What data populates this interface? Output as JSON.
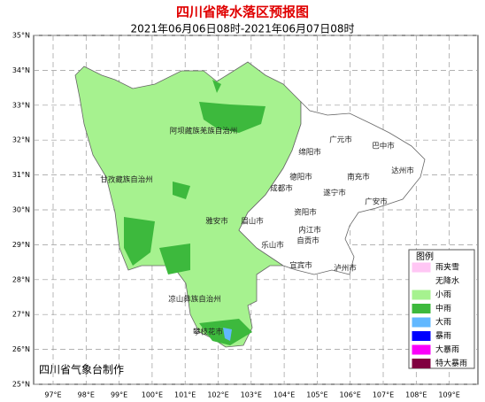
{
  "header": {
    "title": "四川省降水落区预报图",
    "subtitle": "2021年06月06日08时-2021年06月07日08时"
  },
  "map": {
    "lat_labels": [
      "35°N",
      "34°N",
      "33°N",
      "32°N",
      "31°N",
      "30°N",
      "29°N",
      "28°N",
      "27°N",
      "26°N",
      "25°N"
    ],
    "lon_labels": [
      "97°E",
      "98°E",
      "99°E",
      "100°E",
      "101°E",
      "102°E",
      "103°E",
      "104°E",
      "105°E",
      "106°E",
      "107°E",
      "108°E",
      "109°E"
    ],
    "regions": [
      "阿坝藏族羌族自治州",
      "甘孜藏族自治州",
      "凉山彝族自治州",
      "攀枝花市",
      "雅安市",
      "眉山市",
      "成都市",
      "德阳市",
      "绵阳市",
      "广元市",
      "巴中市",
      "达州市",
      "南充市",
      "遂宁市",
      "广安市",
      "资阳市",
      "内江市",
      "乐山市",
      "自贡市",
      "宜宾市",
      "泸州市"
    ],
    "credit": "四川省气象台制作"
  },
  "legend": {
    "title": "图例",
    "items": [
      {
        "label": "雨夹雪",
        "color": "#ffc6f4"
      },
      {
        "label": "无降水",
        "color": "#ffffff"
      },
      {
        "label": "小雨",
        "color": "#a6f28f"
      },
      {
        "label": "中雨",
        "color": "#3db93d"
      },
      {
        "label": "大雨",
        "color": "#61b8ff"
      },
      {
        "label": "暴雨",
        "color": "#0000fe"
      },
      {
        "label": "大暴雨",
        "color": "#fa00fa"
      },
      {
        "label": "特大暴雨",
        "color": "#800040"
      }
    ]
  }
}
